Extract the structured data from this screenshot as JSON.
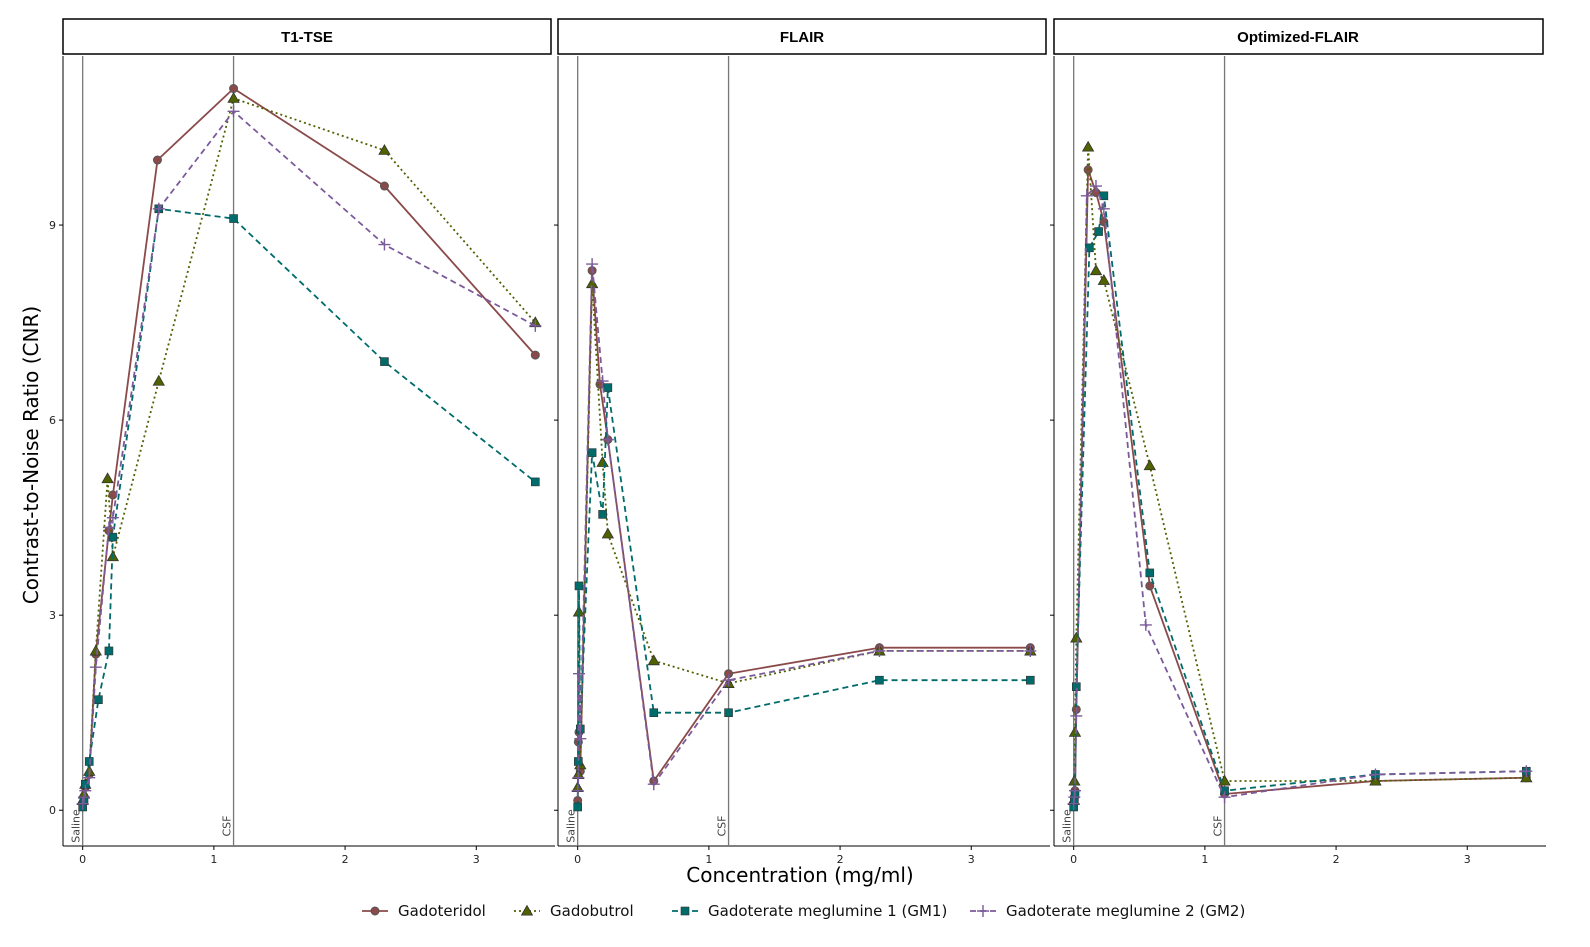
{
  "chart_data": {
    "type": "line",
    "ylabel": "Contrast-to-Noise Ratio (CNR)",
    "xlabel": "Concentration (mg/ml)",
    "xlim": [
      -0.15,
      3.6
    ],
    "ylim": [
      -0.55,
      11.6
    ],
    "x_ticks": [
      0,
      1,
      2,
      3
    ],
    "y_ticks": [
      0,
      3,
      6,
      9
    ],
    "x_tick_labels": [
      "0",
      "1",
      "2",
      "3"
    ],
    "y_tick_labels": [
      "0",
      "3",
      "6",
      "9"
    ],
    "vertical_lines": [
      {
        "x": 0,
        "label": "Saline"
      },
      {
        "x": 1.15,
        "label": "CSF"
      }
    ],
    "legend": [
      {
        "name": "Gadoteridol",
        "color": "#8B4A4A",
        "marker": "circle",
        "dash": "solid"
      },
      {
        "name": "Gadobutrol",
        "color": "#4F6200",
        "marker": "triangle",
        "dash": "dotted"
      },
      {
        "name": "Gadoterate meglumine 1 (GM1)",
        "color": "#006B6B",
        "marker": "square",
        "dash": "dashed"
      },
      {
        "name": "Gadoterate meglumine 2 (GM2)",
        "color": "#7B5A9A",
        "marker": "plus",
        "dash": "dashed"
      }
    ],
    "panels": [
      {
        "title": "T1-TSE",
        "series": [
          {
            "name": "Gadoteridol",
            "x": [
              0,
              0.01,
              0.02,
              0.05,
              0.1,
              0.2,
              0.23,
              0.57,
              1.15,
              2.3,
              3.45
            ],
            "y": [
              0.1,
              0.2,
              0.35,
              0.55,
              2.4,
              4.3,
              4.85,
              10.0,
              11.1,
              9.6,
              7.0
            ]
          },
          {
            "name": "Gadobutrol",
            "x": [
              0,
              0.01,
              0.02,
              0.05,
              0.1,
              0.19,
              0.23,
              0.58,
              1.15,
              2.3,
              3.45
            ],
            "y": [
              0.15,
              0.25,
              0.4,
              0.6,
              2.45,
              5.1,
              3.9,
              6.6,
              10.95,
              10.15,
              7.5
            ]
          },
          {
            "name": "Gadoterate meglumine 1 (GM1)",
            "x": [
              0,
              0.01,
              0.02,
              0.05,
              0.12,
              0.2,
              0.23,
              0.58,
              1.15,
              2.3,
              3.45
            ],
            "y": [
              0.05,
              0.15,
              0.4,
              0.75,
              1.7,
              2.45,
              4.2,
              9.25,
              9.1,
              6.9,
              5.05
            ]
          },
          {
            "name": "Gadoterate meglumine 2 (GM2)",
            "x": [
              0,
              0.01,
              0.02,
              0.05,
              0.1,
              0.2,
              0.23,
              0.58,
              1.15,
              2.3,
              3.45
            ],
            "y": [
              0.1,
              0.2,
              0.3,
              0.5,
              2.2,
              4.35,
              4.5,
              9.25,
              10.75,
              8.7,
              7.45
            ]
          }
        ]
      },
      {
        "title": "FLAIR",
        "series": [
          {
            "name": "Gadoteridol",
            "x": [
              0,
              0.005,
              0.01,
              0.02,
              0.11,
              0.17,
              0.23,
              0.58,
              1.15,
              2.3,
              3.45
            ],
            "y": [
              0.15,
              1.05,
              1.2,
              0.6,
              8.3,
              6.55,
              5.7,
              0.45,
              2.1,
              2.5,
              2.5
            ]
          },
          {
            "name": "Gadobutrol",
            "x": [
              0,
              0.005,
              0.01,
              0.02,
              0.11,
              0.19,
              0.23,
              0.58,
              1.15,
              2.3,
              3.45
            ],
            "y": [
              0.35,
              0.55,
              3.05,
              0.7,
              8.1,
              5.35,
              4.25,
              2.3,
              1.95,
              2.45,
              2.45
            ]
          },
          {
            "name": "Gadoterate meglumine 1 (GM1)",
            "x": [
              0,
              0.005,
              0.01,
              0.02,
              0.11,
              0.19,
              0.23,
              0.58,
              1.15,
              2.3,
              3.45
            ],
            "y": [
              0.05,
              0.75,
              3.45,
              1.25,
              5.5,
              4.55,
              6.5,
              1.5,
              1.5,
              2.0,
              2.0
            ]
          },
          {
            "name": "Gadoterate meglumine 2 (GM2)",
            "x": [
              0,
              0.005,
              0.01,
              0.02,
              0.11,
              0.19,
              0.23,
              0.58,
              1.15,
              2.3,
              3.45
            ],
            "y": [
              0.3,
              0.5,
              2.1,
              1.1,
              8.4,
              6.6,
              5.7,
              0.4,
              2.0,
              2.45,
              2.45
            ]
          }
        ]
      },
      {
        "title": "Optimized-FLAIR",
        "series": [
          {
            "name": "Gadoteridol",
            "x": [
              0,
              0.005,
              0.01,
              0.02,
              0.11,
              0.17,
              0.23,
              0.58,
              1.15,
              2.3,
              3.45
            ],
            "y": [
              0.1,
              0.2,
              0.3,
              1.55,
              9.85,
              9.5,
              9.05,
              3.45,
              0.25,
              0.45,
              0.5
            ]
          },
          {
            "name": "Gadobutrol",
            "x": [
              0,
              0.005,
              0.01,
              0.02,
              0.11,
              0.17,
              0.23,
              0.58,
              1.15,
              2.3,
              3.45
            ],
            "y": [
              0.15,
              0.45,
              1.2,
              2.65,
              10.2,
              8.3,
              8.15,
              5.3,
              0.45,
              0.45,
              0.5
            ]
          },
          {
            "name": "Gadoterate meglumine 1 (GM1)",
            "x": [
              0,
              0.005,
              0.01,
              0.02,
              0.12,
              0.19,
              0.23,
              0.58,
              1.15,
              2.3,
              3.45
            ],
            "y": [
              0.05,
              0.15,
              0.25,
              1.9,
              8.65,
              8.9,
              9.45,
              3.65,
              0.3,
              0.55,
              0.6
            ]
          },
          {
            "name": "Gadoterate meglumine 2 (GM2)",
            "x": [
              0,
              0.005,
              0.01,
              0.02,
              0.1,
              0.17,
              0.23,
              0.55,
              1.15,
              2.3,
              3.45
            ],
            "y": [
              0.1,
              0.2,
              0.3,
              1.45,
              9.45,
              9.6,
              9.25,
              2.85,
              0.2,
              0.55,
              0.6
            ]
          }
        ]
      }
    ]
  }
}
